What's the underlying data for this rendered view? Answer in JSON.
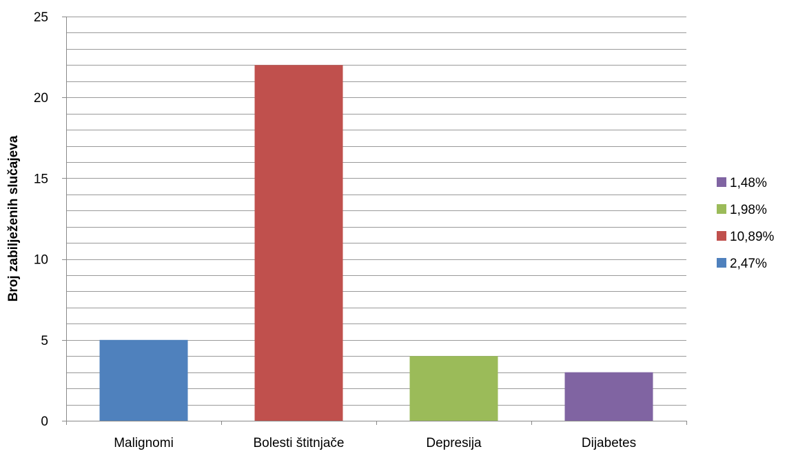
{
  "chart_data": {
    "type": "bar",
    "title": "",
    "xlabel": "",
    "ylabel": "Broj zabilježenih slučajeva",
    "ylim": [
      0,
      25
    ],
    "y_major_ticks": [
      "0",
      "5",
      "10",
      "15",
      "20",
      "25"
    ],
    "y_major_step": 5,
    "y_minor_step": 1,
    "grid": true,
    "categories": [
      "Malignomi",
      "Bolesti štitnjače",
      "Depresija",
      "Dijabetes"
    ],
    "values": [
      5,
      22,
      4,
      3
    ],
    "bar_colors": [
      "#4F81BD",
      "#C0504D",
      "#9BBB59",
      "#8064A2"
    ],
    "legend_position": "right",
    "legend": [
      {
        "label": "1,48%",
        "color": "#8064A2"
      },
      {
        "label": "1,98%",
        "color": "#9BBB59"
      },
      {
        "label": "10,89%",
        "color": "#C0504D"
      },
      {
        "label": "2,47%",
        "color": "#4F81BD"
      }
    ],
    "colors": {
      "grid": "#999999",
      "axis": "#888888"
    }
  }
}
